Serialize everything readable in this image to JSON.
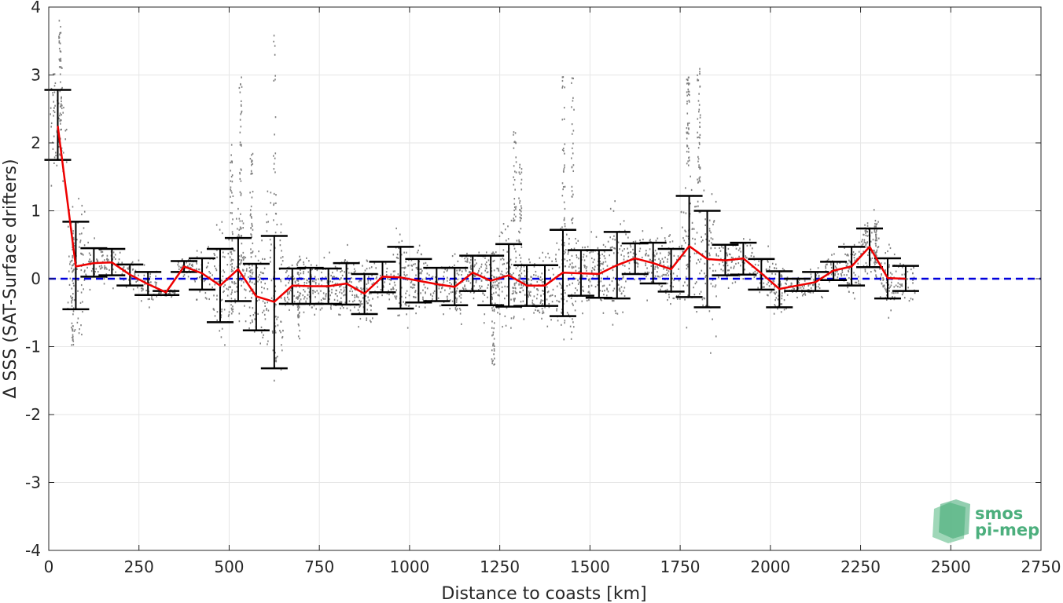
{
  "chart_data": {
    "type": "scatter",
    "xlabel": "Distance to coasts [km]",
    "ylabel": "Δ SSS (SAT-Surface drifters)",
    "xlim": [
      0,
      2750
    ],
    "ylim": [
      -4,
      4
    ],
    "grid": true,
    "x_ticks": [
      0,
      250,
      500,
      750,
      1000,
      1250,
      1500,
      1750,
      2000,
      2250,
      2500,
      2750
    ],
    "y_ticks": [
      -4,
      -3,
      -2,
      -1,
      0,
      1,
      2,
      3,
      4
    ],
    "reference_line": {
      "y": 0,
      "color": "#0000dd",
      "style": "dashed"
    },
    "scatter_color": "#808080",
    "mean_line_color": "#ee0000",
    "errorbar_color": "#000000",
    "binned_stats": [
      {
        "x": 25,
        "mean": 2.25,
        "low": 1.75,
        "high": 2.78
      },
      {
        "x": 75,
        "mean": 0.18,
        "low": -0.45,
        "high": 0.84
      },
      {
        "x": 125,
        "mean": 0.23,
        "low": 0.03,
        "high": 0.45
      },
      {
        "x": 175,
        "mean": 0.24,
        "low": 0.05,
        "high": 0.44
      },
      {
        "x": 225,
        "mean": 0.06,
        "low": -0.1,
        "high": 0.21
      },
      {
        "x": 275,
        "mean": -0.08,
        "low": -0.24,
        "high": 0.1
      },
      {
        "x": 325,
        "mean": -0.2,
        "low": -0.24,
        "high": -0.18
      },
      {
        "x": 375,
        "mean": 0.18,
        "low": 0.1,
        "high": 0.26
      },
      {
        "x": 425,
        "mean": 0.08,
        "low": -0.16,
        "high": 0.3
      },
      {
        "x": 475,
        "mean": -0.1,
        "low": -0.64,
        "high": 0.44
      },
      {
        "x": 525,
        "mean": 0.14,
        "low": -0.33,
        "high": 0.6
      },
      {
        "x": 575,
        "mean": -0.26,
        "low": -0.76,
        "high": 0.22
      },
      {
        "x": 625,
        "mean": -0.34,
        "low": -1.32,
        "high": 0.63
      },
      {
        "x": 675,
        "mean": -0.1,
        "low": -0.37,
        "high": 0.15
      },
      {
        "x": 725,
        "mean": -0.11,
        "low": -0.37,
        "high": 0.16
      },
      {
        "x": 775,
        "mean": -0.11,
        "low": -0.37,
        "high": 0.15
      },
      {
        "x": 825,
        "mean": -0.07,
        "low": -0.38,
        "high": 0.23
      },
      {
        "x": 875,
        "mean": -0.22,
        "low": -0.52,
        "high": 0.07
      },
      {
        "x": 925,
        "mean": 0.03,
        "low": -0.2,
        "high": 0.25
      },
      {
        "x": 975,
        "mean": 0.02,
        "low": -0.44,
        "high": 0.47
      },
      {
        "x": 1025,
        "mean": -0.03,
        "low": -0.35,
        "high": 0.29
      },
      {
        "x": 1075,
        "mean": -0.08,
        "low": -0.33,
        "high": 0.16
      },
      {
        "x": 1125,
        "mean": -0.12,
        "low": -0.39,
        "high": 0.16
      },
      {
        "x": 1175,
        "mean": 0.09,
        "low": -0.18,
        "high": 0.34
      },
      {
        "x": 1225,
        "mean": -0.03,
        "low": -0.39,
        "high": 0.34
      },
      {
        "x": 1275,
        "mean": 0.05,
        "low": -0.41,
        "high": 0.51
      },
      {
        "x": 1325,
        "mean": -0.1,
        "low": -0.4,
        "high": 0.2
      },
      {
        "x": 1375,
        "mean": -0.1,
        "low": -0.4,
        "high": 0.2
      },
      {
        "x": 1425,
        "mean": 0.09,
        "low": -0.55,
        "high": 0.72
      },
      {
        "x": 1475,
        "mean": 0.08,
        "low": -0.25,
        "high": 0.42
      },
      {
        "x": 1525,
        "mean": 0.07,
        "low": -0.28,
        "high": 0.42
      },
      {
        "x": 1575,
        "mean": 0.2,
        "low": -0.29,
        "high": 0.69
      },
      {
        "x": 1625,
        "mean": 0.3,
        "low": 0.07,
        "high": 0.52
      },
      {
        "x": 1675,
        "mean": 0.23,
        "low": -0.07,
        "high": 0.53
      },
      {
        "x": 1725,
        "mean": 0.14,
        "low": -0.19,
        "high": 0.44
      },
      {
        "x": 1775,
        "mean": 0.48,
        "low": -0.27,
        "high": 1.22
      },
      {
        "x": 1825,
        "mean": 0.29,
        "low": -0.42,
        "high": 1.0
      },
      {
        "x": 1875,
        "mean": 0.27,
        "low": 0.05,
        "high": 0.5
      },
      {
        "x": 1925,
        "mean": 0.3,
        "low": 0.06,
        "high": 0.53
      },
      {
        "x": 1975,
        "mean": 0.08,
        "low": -0.16,
        "high": 0.29
      },
      {
        "x": 2025,
        "mean": -0.15,
        "low": -0.42,
        "high": 0.11
      },
      {
        "x": 2075,
        "mean": -0.1,
        "low": -0.18,
        "high": 0.0
      },
      {
        "x": 2125,
        "mean": -0.05,
        "low": -0.18,
        "high": 0.1
      },
      {
        "x": 2175,
        "mean": 0.12,
        "low": -0.02,
        "high": 0.25
      },
      {
        "x": 2225,
        "mean": 0.18,
        "low": -0.1,
        "high": 0.47
      },
      {
        "x": 2275,
        "mean": 0.47,
        "low": 0.17,
        "high": 0.74
      },
      {
        "x": 2325,
        "mean": 0.01,
        "low": -0.29,
        "high": 0.3
      },
      {
        "x": 2375,
        "mean": 0.0,
        "low": -0.18,
        "high": 0.19
      }
    ],
    "scatter_clusters": [
      {
        "x": 30,
        "ymin": 1.8,
        "ymax": 3.9
      },
      {
        "x": 65,
        "ymin": -1.0,
        "ymax": 0.8
      },
      {
        "x": 505,
        "ymin": -0.6,
        "ymax": 2.0
      },
      {
        "x": 530,
        "ymin": 0.2,
        "ymax": 3.0
      },
      {
        "x": 560,
        "ymin": -0.3,
        "ymax": 1.9
      },
      {
        "x": 625,
        "ymin": -1.5,
        "ymax": 3.6
      },
      {
        "x": 690,
        "ymin": -0.9,
        "ymax": 0.4
      },
      {
        "x": 1230,
        "ymin": -1.3,
        "ymax": 0.4
      },
      {
        "x": 1290,
        "ymin": -0.3,
        "ymax": 2.2
      },
      {
        "x": 1305,
        "ymin": -0.2,
        "ymax": 1.7
      },
      {
        "x": 1425,
        "ymin": -0.5,
        "ymax": 3.0
      },
      {
        "x": 1450,
        "ymin": -0.9,
        "ymax": 3.0
      },
      {
        "x": 1770,
        "ymin": 1.6,
        "ymax": 3.0
      },
      {
        "x": 1800,
        "ymin": 1.4,
        "ymax": 3.2
      },
      {
        "x": 2290,
        "ymin": 0.0,
        "ymax": 0.9
      }
    ]
  },
  "logo": {
    "line1": "smos",
    "line2": "pi-mep",
    "color": "#4caf7d"
  }
}
